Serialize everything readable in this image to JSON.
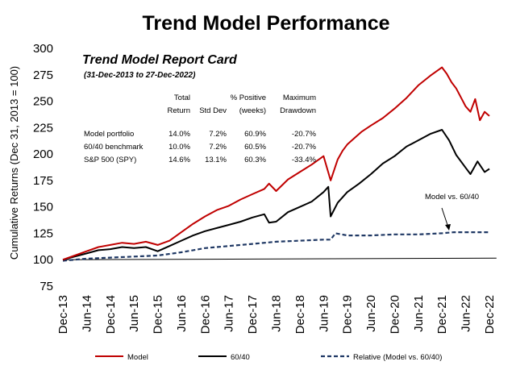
{
  "chart_data": {
    "type": "line",
    "title": "Trend Model Performance",
    "ylabel": "Cumulative Returns (Dec 31, 2013 = 100)",
    "ylim": [
      75,
      300
    ],
    "yticks": [
      "75",
      "100",
      "125",
      "150",
      "175",
      "200",
      "225",
      "250",
      "275",
      "300"
    ],
    "x_tick_labels": [
      "Dec-13",
      "Jun-14",
      "Dec-14",
      "Jun-15",
      "Dec-15",
      "Jun-16",
      "Dec-16",
      "Jun-17",
      "Dec-17",
      "Jun-18",
      "Dec-18",
      "Jun-19",
      "Dec-19",
      "Jun-20",
      "Dec-20",
      "Jun-21",
      "Dec-21",
      "Jun-22",
      "Dec-22"
    ],
    "x_range": [
      0,
      18
    ],
    "series": [
      {
        "name": "Model",
        "color": "#c00000",
        "style": "solid",
        "x": [
          0,
          0.5,
          1,
          1.5,
          2,
          2.5,
          3,
          3.5,
          4,
          4.5,
          5,
          5.5,
          6,
          6.5,
          7,
          7.5,
          8,
          8.5,
          8.7,
          9,
          9.5,
          10,
          10.5,
          11,
          11.3,
          11.6,
          11.8,
          12,
          12.3,
          12.6,
          13,
          13.5,
          14,
          14.5,
          15,
          15.5,
          16,
          16.2,
          16.4,
          16.6,
          17,
          17.2,
          17.4,
          17.6,
          17.8,
          18
        ],
        "values": [
          100,
          104,
          108,
          112,
          114,
          116,
          115,
          117,
          114,
          118,
          126,
          134,
          141,
          147,
          151,
          157,
          162,
          167,
          172,
          165,
          176,
          183,
          190,
          198,
          175,
          195,
          203,
          209,
          215,
          221,
          227,
          234,
          243,
          253,
          265,
          274,
          282,
          276,
          268,
          262,
          245,
          240,
          252,
          232,
          240,
          236
        ]
      },
      {
        "name": "60/40",
        "color": "#000000",
        "style": "solid",
        "x": [
          0,
          0.5,
          1,
          1.5,
          2,
          2.5,
          3,
          3.5,
          4,
          4.5,
          5,
          5.5,
          6,
          6.5,
          7,
          7.5,
          8,
          8.5,
          8.7,
          9,
          9.5,
          10,
          10.5,
          11,
          11.2,
          11.3,
          11.6,
          12,
          12.5,
          13,
          13.5,
          14,
          14.5,
          15,
          15.5,
          16,
          16.3,
          16.6,
          17,
          17.2,
          17.5,
          17.8,
          18
        ],
        "values": [
          100,
          103,
          106,
          109,
          110,
          112,
          111,
          112,
          108,
          113,
          118,
          123,
          127,
          130,
          133,
          136,
          140,
          143,
          135,
          136,
          145,
          150,
          155,
          164,
          169,
          141,
          154,
          164,
          172,
          181,
          191,
          198,
          207,
          213,
          219,
          223,
          213,
          199,
          187,
          181,
          193,
          183,
          186
        ]
      },
      {
        "name": "Relative (Model vs. 60/40)",
        "color": "#1f3864",
        "style": "dashed",
        "x": [
          0,
          1,
          2,
          3,
          4,
          5,
          6,
          7,
          8,
          9,
          10,
          11,
          11.3,
          11.5,
          12,
          13,
          14,
          15,
          16,
          16.5,
          17,
          17.5,
          18
        ],
        "values": [
          99,
          101,
          102,
          103,
          104,
          107,
          111,
          113,
          115,
          117,
          118,
          119,
          119,
          125,
          123,
          123,
          124,
          124,
          125,
          126,
          126,
          126,
          126
        ]
      },
      {
        "name": "Baseline",
        "color": "#000000",
        "style": "thin",
        "x": [
          0,
          18.3
        ],
        "values": [
          100,
          101.5
        ]
      }
    ],
    "legend": [
      "Model",
      "60/40",
      "Relative (Model vs. 60/40)"
    ],
    "legend_placement": "bottom",
    "annotation": "Model vs. 60/40",
    "grid": false
  },
  "report_card": {
    "title": "Trend Model Report Card",
    "subtitle": "(31-Dec-2013 to 27-Dec-2022)",
    "headers": [
      [
        "Total",
        "Return"
      ],
      [
        "",
        "Std Dev"
      ],
      [
        "% Positive",
        "(weeks)"
      ],
      [
        "Maximum",
        "Drawdown"
      ]
    ],
    "rows": [
      {
        "label": "Model portfolio",
        "values": [
          "14.0%",
          "7.2%",
          "60.9%",
          "-20.7%"
        ]
      },
      {
        "label": "60/40 benchmark",
        "values": [
          "10.0%",
          "7.2%",
          "60.5%",
          "-20.7%"
        ]
      },
      {
        "label": "S&P 500 (SPY)",
        "values": [
          "14.6%",
          "13.1%",
          "60.3%",
          "-33.4%"
        ]
      }
    ]
  }
}
